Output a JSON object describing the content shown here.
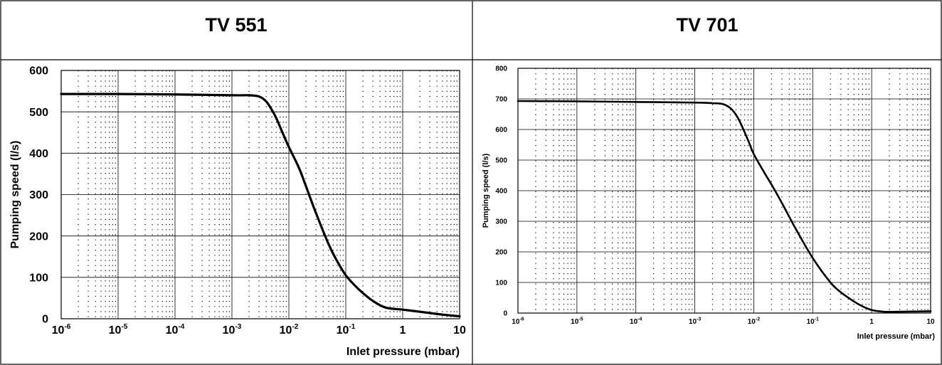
{
  "chart_data": [
    {
      "type": "line",
      "title": "TV 551",
      "xlabel": "Inlet pressure (mbar)",
      "ylabel": "Pumping speed (l/s)",
      "xscale": "log",
      "xlim": [
        1e-06,
        10
      ],
      "ylim": [
        0,
        600
      ],
      "grid": true,
      "x_ticks": [
        {
          "value": 1e-06,
          "base": "10",
          "exp": "-6"
        },
        {
          "value": 1e-05,
          "base": "10",
          "exp": "-5"
        },
        {
          "value": 0.0001,
          "base": "10",
          "exp": "-4"
        },
        {
          "value": 0.001,
          "base": "10",
          "exp": "-3"
        },
        {
          "value": 0.01,
          "base": "10",
          "exp": "-2"
        },
        {
          "value": 0.1,
          "base": "10",
          "exp": "-1"
        },
        {
          "value": 1,
          "base": "1",
          "exp": ""
        },
        {
          "value": 10,
          "base": "10",
          "exp": ""
        }
      ],
      "y_ticks": [
        "0",
        "100",
        "200",
        "300",
        "400",
        "500",
        "600"
      ],
      "series": [
        {
          "x": [
            1e-06,
            1e-05,
            0.0001,
            0.001,
            0.002,
            0.003,
            0.004,
            0.005,
            0.006,
            0.008,
            0.01,
            0.015,
            0.02,
            0.03,
            0.05,
            0.07,
            0.1,
            0.15,
            0.2,
            0.3,
            0.5,
            1,
            2,
            5,
            10
          ],
          "y": [
            543,
            543,
            542,
            540,
            540,
            537,
            525,
            505,
            485,
            445,
            415,
            365,
            320,
            255,
            180,
            140,
            105,
            78,
            62,
            43,
            27,
            22,
            17,
            10,
            6
          ]
        }
      ]
    },
    {
      "type": "line",
      "title": "TV 701",
      "xlabel": "Inlet pressure (mbar)",
      "ylabel": "Pumping speed (l/s)",
      "xscale": "log",
      "xlim": [
        1e-06,
        10
      ],
      "ylim": [
        0,
        800
      ],
      "grid": true,
      "x_ticks": [
        {
          "value": 1e-06,
          "base": "10",
          "exp": "-6"
        },
        {
          "value": 1e-05,
          "base": "10",
          "exp": "-5"
        },
        {
          "value": 0.0001,
          "base": "10",
          "exp": "-4"
        },
        {
          "value": 0.001,
          "base": "10",
          "exp": "-3"
        },
        {
          "value": 0.01,
          "base": "10",
          "exp": "-2"
        },
        {
          "value": 0.1,
          "base": "10",
          "exp": "-1"
        },
        {
          "value": 1,
          "base": "1",
          "exp": ""
        },
        {
          "value": 10,
          "base": "10",
          "exp": ""
        }
      ],
      "y_ticks": [
        "0",
        "100",
        "200",
        "300",
        "400",
        "500",
        "600",
        "700",
        "800"
      ],
      "series": [
        {
          "x": [
            1e-06,
            1e-05,
            0.0001,
            0.001,
            0.002,
            0.003,
            0.004,
            0.005,
            0.006,
            0.008,
            0.01,
            0.015,
            0.02,
            0.03,
            0.05,
            0.1,
            0.2,
            0.3,
            0.5,
            0.7,
            1,
            1.5,
            2,
            5,
            10
          ],
          "y": [
            693,
            692,
            690,
            688,
            686,
            683,
            670,
            648,
            620,
            565,
            520,
            460,
            420,
            360,
            280,
            180,
            100,
            68,
            38,
            22,
            10,
            5,
            4,
            5,
            6
          ]
        }
      ]
    }
  ]
}
